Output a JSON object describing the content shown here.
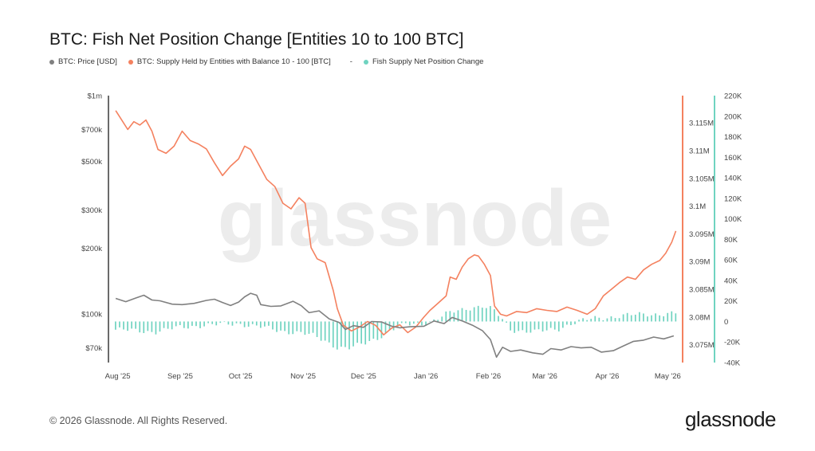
{
  "header": {
    "title": "BTC: Fish Net Position Change [Entities 10 to 100 BTC]"
  },
  "legend": {
    "price": {
      "label": "BTC: Price [USD]",
      "color": "#808080"
    },
    "supply": {
      "label": "BTC: Supply Held by Entities with Balance 10 - 100 [BTC]",
      "color": "#f4815f"
    },
    "separator": "-",
    "netpos": {
      "label": "Fish Supply Net Position Change",
      "color": "#6fd3c0"
    }
  },
  "watermark": "glassnode",
  "footer": {
    "copyright": "© 2026 Glassnode. All Rights Reserved.",
    "brand": "glassnode"
  },
  "chart_data": {
    "type": "line",
    "x_axis": {
      "ticks": [
        "Aug '25",
        "Sep '25",
        "Oct '25",
        "Nov '25",
        "Dec '25",
        "Jan '26",
        "Feb '26",
        "Mar '26",
        "Apr '26",
        "May '26"
      ],
      "range": [
        "2025-07-29",
        "2026-05-06"
      ]
    },
    "y_left": {
      "scale": "log",
      "range": [
        60000,
        1000000
      ],
      "ticks": [
        {
          "v": 1000000,
          "label": "$1m"
        },
        {
          "v": 700000,
          "label": "$700k"
        },
        {
          "v": 500000,
          "label": "$500k"
        },
        {
          "v": 300000,
          "label": "$300k"
        },
        {
          "v": 200000,
          "label": "$200k"
        },
        {
          "v": 100000,
          "label": "$100k"
        },
        {
          "v": 70000,
          "label": "$70k"
        }
      ]
    },
    "y_mid": {
      "scale": "linear",
      "range": [
        3.0718,
        3.1199
      ],
      "ticks": [
        {
          "v": 3.115,
          "label": "3.115M"
        },
        {
          "v": 3.11,
          "label": "3.11M"
        },
        {
          "v": 3.105,
          "label": "3.105M"
        },
        {
          "v": 3.1,
          "label": "3.1M"
        },
        {
          "v": 3.095,
          "label": "3.095M"
        },
        {
          "v": 3.09,
          "label": "3.09M"
        },
        {
          "v": 3.085,
          "label": "3.085M"
        },
        {
          "v": 3.08,
          "label": "3.08M"
        },
        {
          "v": 3.075,
          "label": "3.075M"
        }
      ]
    },
    "y_right": {
      "scale": "linear",
      "range": [
        -40000,
        220000
      ],
      "ticks": [
        {
          "v": 220000,
          "label": "220K"
        },
        {
          "v": 200000,
          "label": "200K"
        },
        {
          "v": 180000,
          "label": "180K"
        },
        {
          "v": 160000,
          "label": "160K"
        },
        {
          "v": 140000,
          "label": "140K"
        },
        {
          "v": 120000,
          "label": "120K"
        },
        {
          "v": 100000,
          "label": "100K"
        },
        {
          "v": 80000,
          "label": "80K"
        },
        {
          "v": 60000,
          "label": "60K"
        },
        {
          "v": 40000,
          "label": "40K"
        },
        {
          "v": 20000,
          "label": "20K"
        },
        {
          "v": 0,
          "label": "0"
        },
        {
          "v": -20000,
          "label": "-20K"
        },
        {
          "v": -40000,
          "label": "-40K"
        }
      ]
    },
    "series": [
      {
        "name": "BTC: Price [USD]",
        "axis": "left",
        "type": "line",
        "points": [
          [
            "2025-07-31",
            118000
          ],
          [
            "2025-08-05",
            114000
          ],
          [
            "2025-08-10",
            118500
          ],
          [
            "2025-08-14",
            122000
          ],
          [
            "2025-08-18",
            116000
          ],
          [
            "2025-08-22",
            115000
          ],
          [
            "2025-08-28",
            111000
          ],
          [
            "2025-09-02",
            110500
          ],
          [
            "2025-09-08",
            112000
          ],
          [
            "2025-09-14",
            115500
          ],
          [
            "2025-09-18",
            117000
          ],
          [
            "2025-09-22",
            113000
          ],
          [
            "2025-09-26",
            109500
          ],
          [
            "2025-09-30",
            113500
          ],
          [
            "2025-10-03",
            120000
          ],
          [
            "2025-10-06",
            124500
          ],
          [
            "2025-10-09",
            122000
          ],
          [
            "2025-10-11",
            110500
          ],
          [
            "2025-10-16",
            108500
          ],
          [
            "2025-10-21",
            109000
          ],
          [
            "2025-10-27",
            114500
          ],
          [
            "2025-10-31",
            109500
          ],
          [
            "2025-11-04",
            101500
          ],
          [
            "2025-11-09",
            103500
          ],
          [
            "2025-11-14",
            95000
          ],
          [
            "2025-11-19",
            91500
          ],
          [
            "2025-11-22",
            85000
          ],
          [
            "2025-11-26",
            88500
          ],
          [
            "2025-12-01",
            87000
          ],
          [
            "2025-12-05",
            92500
          ],
          [
            "2025-12-10",
            92000
          ],
          [
            "2025-12-15",
            88000
          ],
          [
            "2025-12-19",
            86500
          ],
          [
            "2025-12-24",
            87500
          ],
          [
            "2025-12-31",
            88000
          ],
          [
            "2026-01-05",
            93000
          ],
          [
            "2026-01-10",
            90500
          ],
          [
            "2026-01-14",
            96500
          ],
          [
            "2026-01-19",
            93000
          ],
          [
            "2026-01-24",
            89000
          ],
          [
            "2026-01-29",
            84000
          ],
          [
            "2026-02-02",
            76500
          ],
          [
            "2026-02-05",
            63500
          ],
          [
            "2026-02-08",
            70500
          ],
          [
            "2026-02-12",
            67500
          ],
          [
            "2026-02-17",
            68500
          ],
          [
            "2026-02-23",
            66500
          ],
          [
            "2026-02-28",
            65500
          ],
          [
            "2026-03-04",
            69500
          ],
          [
            "2026-03-09",
            68500
          ],
          [
            "2026-03-14",
            71000
          ],
          [
            "2026-03-19",
            70000
          ],
          [
            "2026-03-24",
            70500
          ],
          [
            "2026-03-29",
            67000
          ],
          [
            "2026-04-04",
            68000
          ],
          [
            "2026-04-09",
            71500
          ],
          [
            "2026-04-14",
            75000
          ],
          [
            "2026-04-19",
            76000
          ],
          [
            "2026-04-24",
            78500
          ],
          [
            "2026-04-29",
            77000
          ],
          [
            "2026-05-04",
            79500
          ]
        ]
      },
      {
        "name": "BTC: Supply Held by Entities with Balance 10 - 100 [BTC]",
        "axis": "mid",
        "type": "line",
        "unit": "M BTC",
        "points": [
          [
            "2025-07-31",
            3.1172
          ],
          [
            "2025-08-03",
            3.1155
          ],
          [
            "2025-08-06",
            3.1138
          ],
          [
            "2025-08-09",
            3.1152
          ],
          [
            "2025-08-12",
            3.1146
          ],
          [
            "2025-08-15",
            3.1155
          ],
          [
            "2025-08-18",
            3.1135
          ],
          [
            "2025-08-21",
            3.1102
          ],
          [
            "2025-08-25",
            3.1095
          ],
          [
            "2025-08-29",
            3.1108
          ],
          [
            "2025-09-02",
            3.1135
          ],
          [
            "2025-09-06",
            3.1118
          ],
          [
            "2025-09-10",
            3.1112
          ],
          [
            "2025-09-14",
            3.1103
          ],
          [
            "2025-09-18",
            3.1078
          ],
          [
            "2025-09-22",
            3.1055
          ],
          [
            "2025-09-26",
            3.1072
          ],
          [
            "2025-09-30",
            3.1085
          ],
          [
            "2025-10-03",
            3.1108
          ],
          [
            "2025-10-06",
            3.1102
          ],
          [
            "2025-10-10",
            3.1075
          ],
          [
            "2025-10-14",
            3.1048
          ],
          [
            "2025-10-18",
            3.1035
          ],
          [
            "2025-10-22",
            3.1005
          ],
          [
            "2025-10-26",
            3.0995
          ],
          [
            "2025-10-30",
            3.1015
          ],
          [
            "2025-11-02",
            3.1005
          ],
          [
            "2025-11-05",
            3.0925
          ],
          [
            "2025-11-08",
            3.0905
          ],
          [
            "2025-11-12",
            3.0898
          ],
          [
            "2025-11-16",
            3.0848
          ],
          [
            "2025-11-18",
            3.0815
          ],
          [
            "2025-11-21",
            3.0785
          ],
          [
            "2025-11-25",
            3.0775
          ],
          [
            "2025-11-29",
            3.0782
          ],
          [
            "2025-12-03",
            3.0792
          ],
          [
            "2025-12-07",
            3.0785
          ],
          [
            "2025-12-11",
            3.0768
          ],
          [
            "2025-12-15",
            3.078
          ],
          [
            "2025-12-19",
            3.0786
          ],
          [
            "2025-12-23",
            3.0772
          ],
          [
            "2025-12-27",
            3.0782
          ],
          [
            "2025-12-31",
            3.08
          ],
          [
            "2026-01-03",
            3.0812
          ],
          [
            "2026-01-07",
            3.0825
          ],
          [
            "2026-01-11",
            3.0838
          ],
          [
            "2026-01-13",
            3.0872
          ],
          [
            "2026-01-16",
            3.0868
          ],
          [
            "2026-01-19",
            3.089
          ],
          [
            "2026-01-22",
            3.0905
          ],
          [
            "2026-01-25",
            3.0912
          ],
          [
            "2026-01-27",
            3.091
          ],
          [
            "2026-01-30",
            3.0895
          ],
          [
            "2026-02-02",
            3.0875
          ],
          [
            "2026-02-04",
            3.082
          ],
          [
            "2026-02-07",
            3.0805
          ],
          [
            "2026-02-10",
            3.0802
          ],
          [
            "2026-02-15",
            3.081
          ],
          [
            "2026-02-20",
            3.0808
          ],
          [
            "2026-02-25",
            3.0815
          ],
          [
            "2026-03-02",
            3.0812
          ],
          [
            "2026-03-07",
            3.081
          ],
          [
            "2026-03-12",
            3.0818
          ],
          [
            "2026-03-17",
            3.0812
          ],
          [
            "2026-03-22",
            3.0805
          ],
          [
            "2026-03-26",
            3.0815
          ],
          [
            "2026-03-30",
            3.0838
          ],
          [
            "2026-04-03",
            3.085
          ],
          [
            "2026-04-07",
            3.0862
          ],
          [
            "2026-04-11",
            3.0872
          ],
          [
            "2026-04-15",
            3.0868
          ],
          [
            "2026-04-19",
            3.0885
          ],
          [
            "2026-04-23",
            3.0895
          ],
          [
            "2026-04-27",
            3.0902
          ],
          [
            "2026-04-30",
            3.0915
          ],
          [
            "2026-05-03",
            3.0935
          ],
          [
            "2026-05-05",
            3.0955
          ]
        ]
      },
      {
        "name": "Fish Supply Net Position Change",
        "axis": "right",
        "type": "bar",
        "points": [
          [
            "2025-07-31",
            -8000
          ],
          [
            "2025-08-10",
            -9000
          ],
          [
            "2025-08-20",
            -10000
          ],
          [
            "2025-08-31",
            -6000
          ],
          [
            "2025-09-10",
            -4000
          ],
          [
            "2025-09-20",
            -3000
          ],
          [
            "2025-09-30",
            -2000
          ],
          [
            "2025-10-10",
            -5000
          ],
          [
            "2025-10-20",
            -9000
          ],
          [
            "2025-10-31",
            -11000
          ],
          [
            "2025-11-06",
            -14000
          ],
          [
            "2025-11-12",
            -19000
          ],
          [
            "2025-11-18",
            -25000
          ],
          [
            "2025-11-24",
            -26000
          ],
          [
            "2025-12-01",
            -22000
          ],
          [
            "2025-12-08",
            -16000
          ],
          [
            "2025-12-15",
            -8000
          ],
          [
            "2025-12-22",
            -3000
          ],
          [
            "2025-12-31",
            -2000
          ],
          [
            "2026-01-06",
            2000
          ],
          [
            "2026-01-12",
            8000
          ],
          [
            "2026-01-18",
            11000
          ],
          [
            "2026-01-24",
            14000
          ],
          [
            "2026-01-29",
            15000
          ],
          [
            "2026-02-03",
            12000
          ],
          [
            "2026-02-08",
            2000
          ],
          [
            "2026-02-12",
            -8000
          ],
          [
            "2026-02-18",
            -9000
          ],
          [
            "2026-02-24",
            -10000
          ],
          [
            "2026-03-02",
            -9000
          ],
          [
            "2026-03-08",
            -7000
          ],
          [
            "2026-03-14",
            -2000
          ],
          [
            "2026-03-20",
            1000
          ],
          [
            "2026-03-26",
            3000
          ],
          [
            "2026-04-01",
            4000
          ],
          [
            "2026-04-10",
            6000
          ],
          [
            "2026-04-20",
            7000
          ],
          [
            "2026-04-30",
            7500
          ],
          [
            "2026-05-05",
            8000
          ]
        ]
      }
    ],
    "legend_position": "top-left",
    "grid": false
  }
}
